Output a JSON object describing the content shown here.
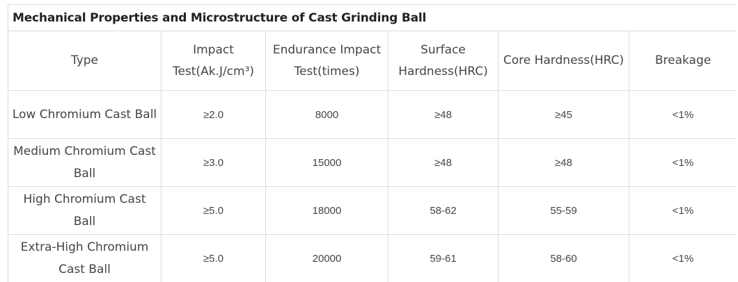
{
  "table": {
    "title": "Mechanical Properties and Microstructure of Cast Grinding Ball",
    "headers": [
      "Type",
      "Impact Test(Ak.J/cm³)",
      "Endurance Impact Test(times)",
      "Surface Hardness(HRC)",
      "Core Hardness(HRC)",
      "Breakage"
    ],
    "rows": [
      [
        "Low Chromium Cast Ball",
        "≥2.0",
        "8000",
        "≥48",
        "≥45",
        "<1%"
      ],
      [
        "Medium Chromium Cast Ball",
        "≥3.0",
        "15000",
        "≥48",
        "≥48",
        "<1%"
      ],
      [
        "High Chromium Cast Ball",
        "≥5.0",
        "18000",
        "58-62",
        "55-59",
        "<1%"
      ],
      [
        "Extra-High Chromium Cast Ball",
        "≥5.0",
        "20000",
        "59-61",
        "58-60",
        "<1%"
      ]
    ]
  },
  "colors": {
    "border": "#dcdcdc",
    "text": "#444444",
    "title_text": "#222222"
  }
}
